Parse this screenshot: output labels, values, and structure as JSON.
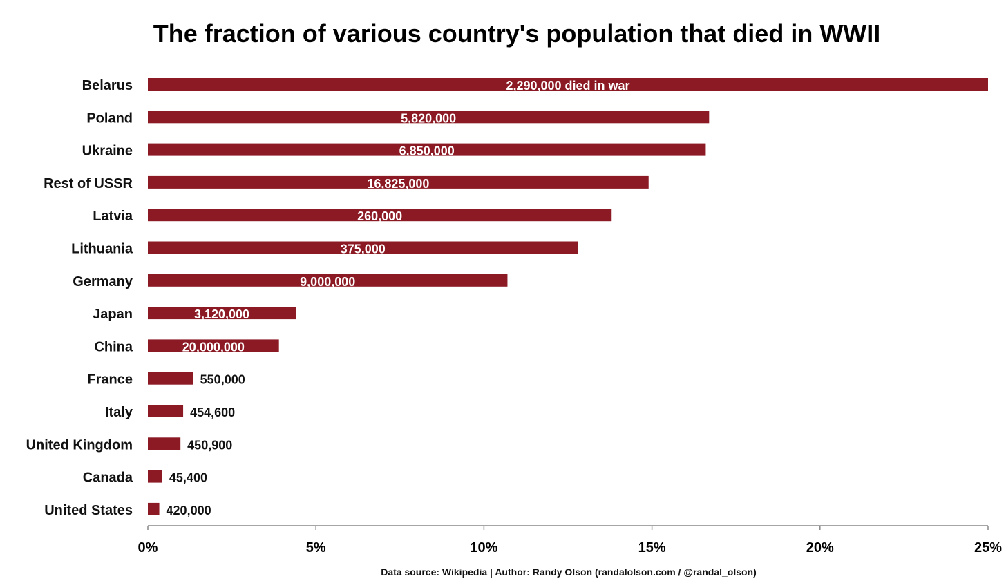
{
  "chart_data": {
    "type": "bar",
    "orientation": "horizontal",
    "title": "The fraction of various country's population that died in WWII",
    "footer": "Data source: Wikipedia | Author: Randy Olson (randalolson.com / @randal_olson)",
    "xlim": [
      0,
      25
    ],
    "x_ticks": [
      0,
      5,
      10,
      15,
      20,
      25
    ],
    "x_tick_labels": [
      "0%",
      "5%",
      "10%",
      "15%",
      "20%",
      "25%"
    ],
    "xlabel": "",
    "ylabel": "",
    "grid": false,
    "bar_color": "#8b1a24",
    "categories": [
      "Belarus",
      "Poland",
      "Ukraine",
      "Rest of USSR",
      "Latvia",
      "Lithuania",
      "Germany",
      "Japan",
      "China",
      "France",
      "Italy",
      "United Kingdom",
      "Canada",
      "United States"
    ],
    "values": [
      25.0,
      16.7,
      16.6,
      14.9,
      13.8,
      12.8,
      10.7,
      4.4,
      3.9,
      1.35,
      1.05,
      0.97,
      0.43,
      0.34
    ],
    "bar_labels": [
      "2,290,000 died in war",
      "5,820,000",
      "6,850,000",
      "16,825,000",
      "260,000",
      "375,000",
      "9,000,000",
      "3,120,000",
      "20,000,000",
      "550,000",
      "454,600",
      "450,900",
      "45,400",
      "420,000"
    ]
  }
}
